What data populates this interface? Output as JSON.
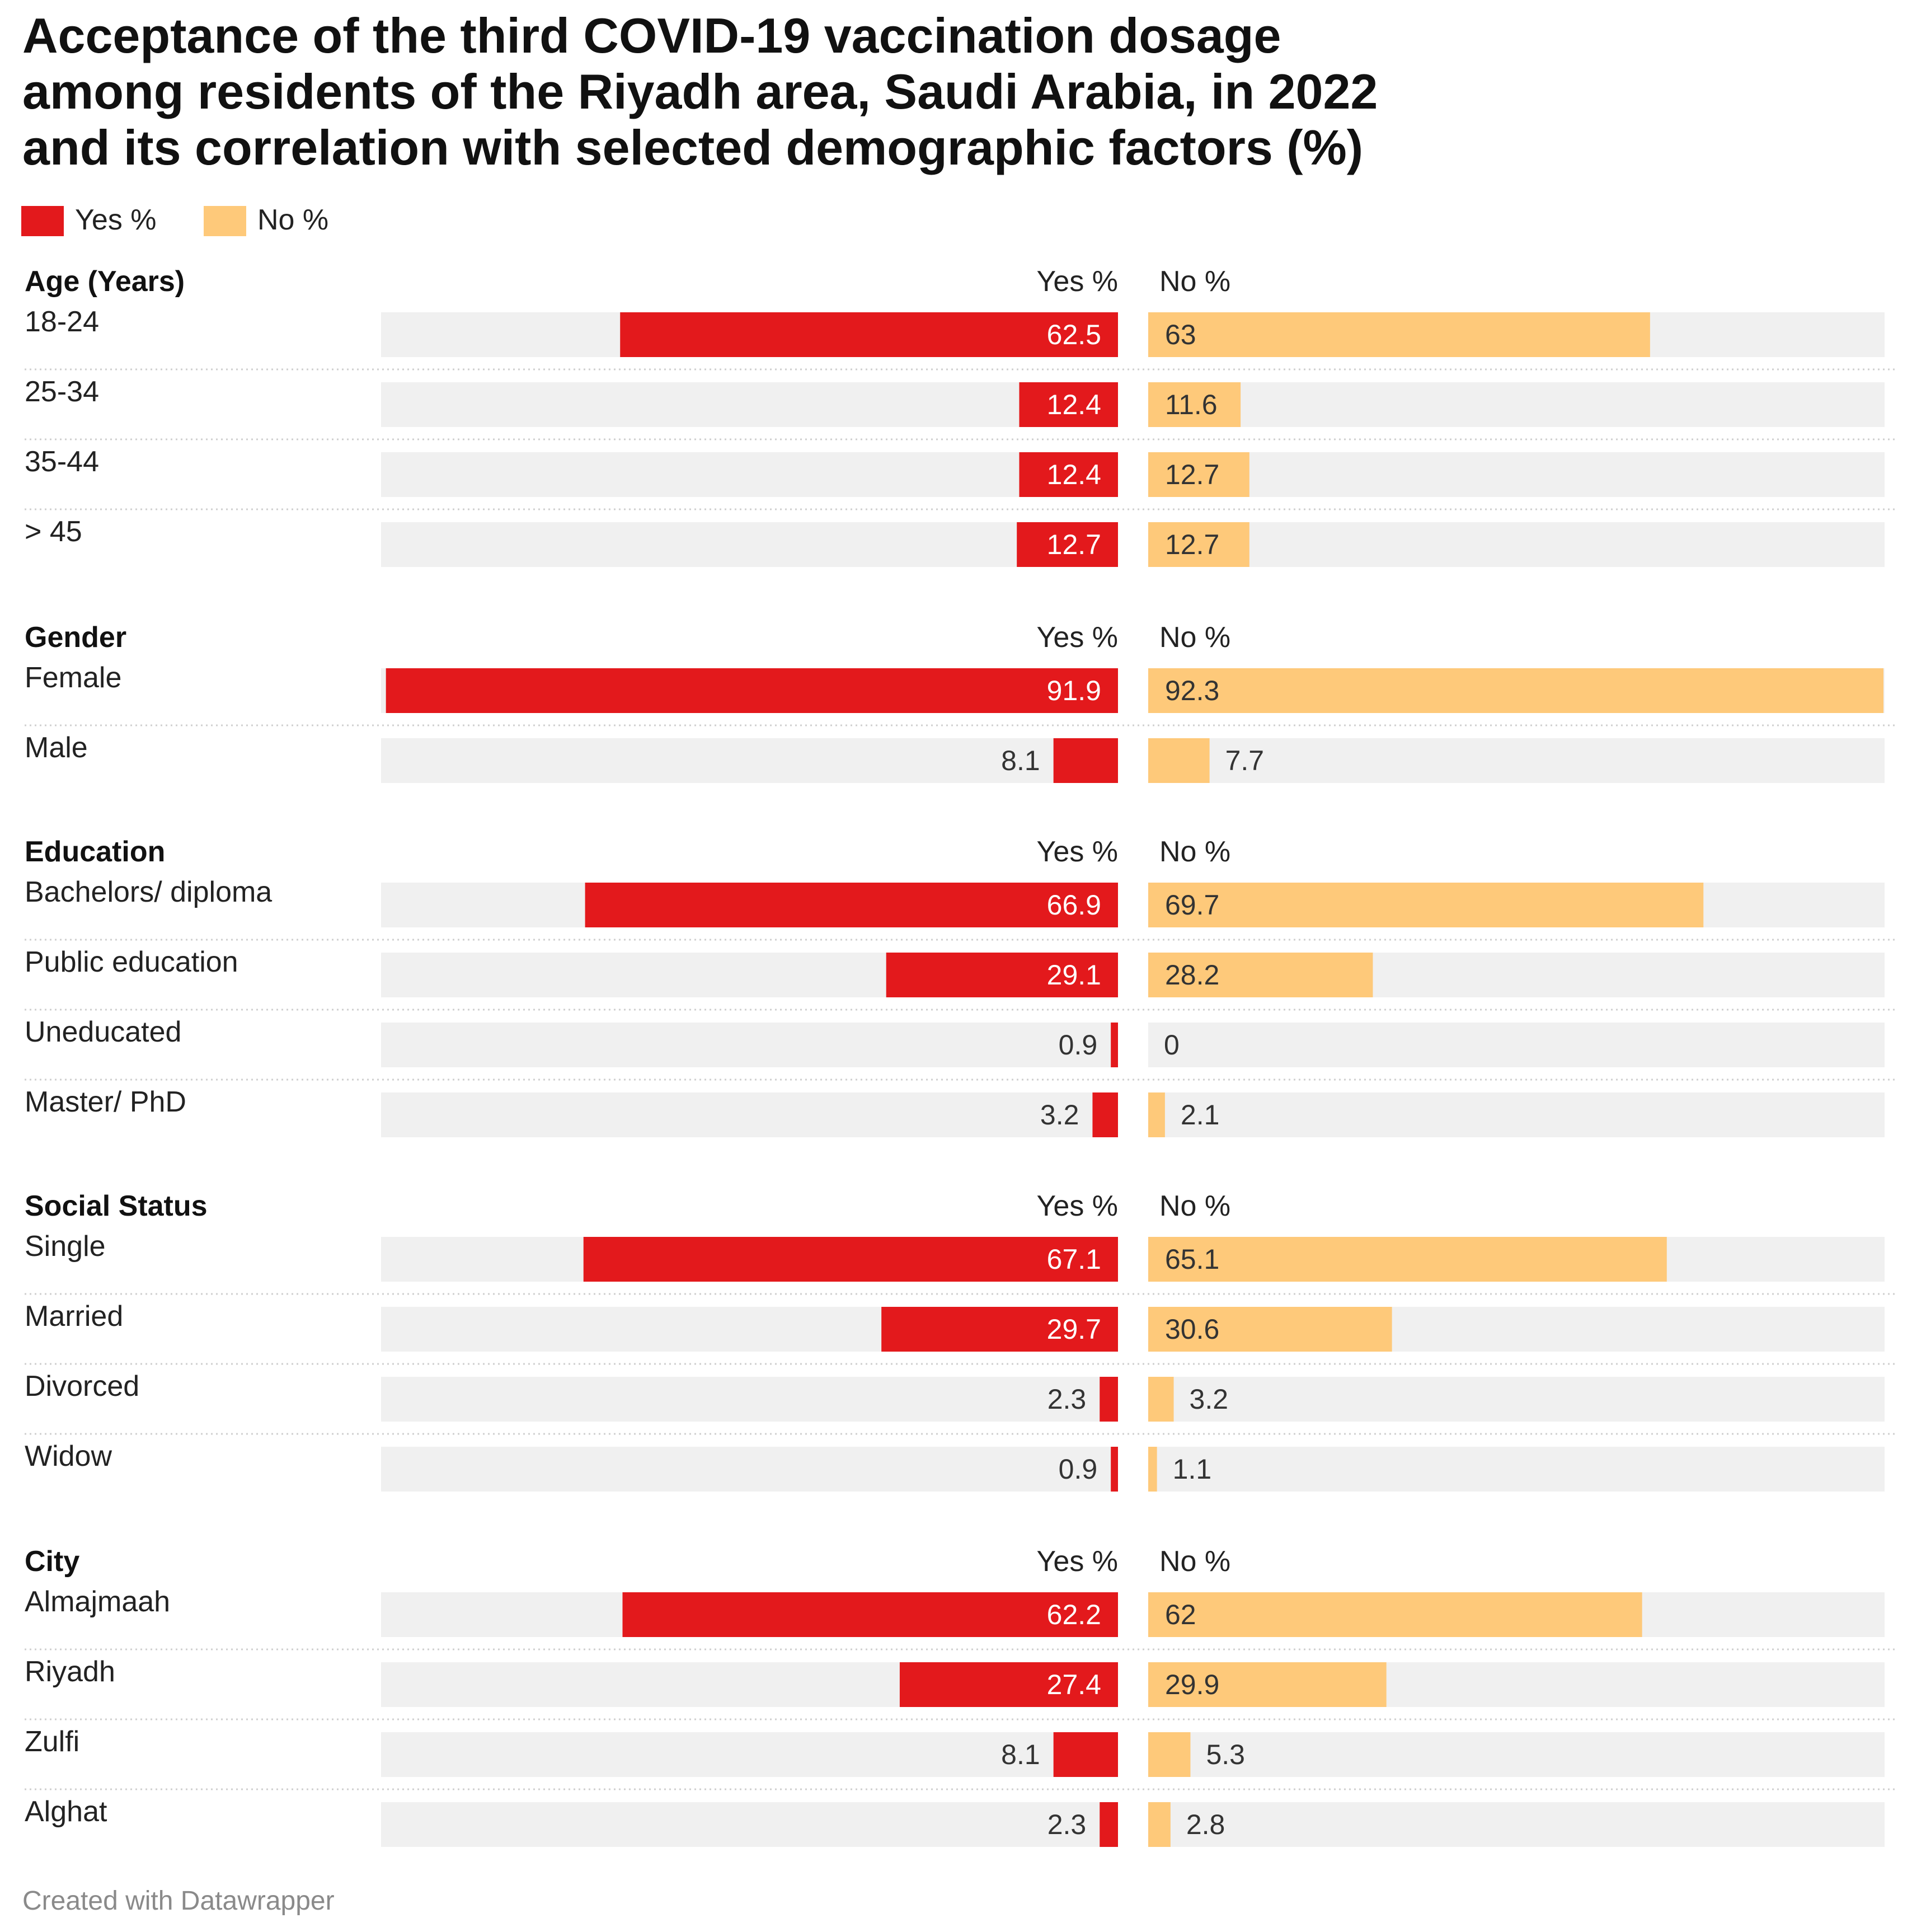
{
  "title_lines": [
    "Acceptance of the third COVID-19 vaccination dosage",
    "among residents of the Riyadh area, Saudi Arabia, in 2022",
    "and its correlation with selected demographic factors (%)"
  ],
  "legend": [
    {
      "label": "Yes %",
      "color": "#e3191c"
    },
    {
      "label": "No %",
      "color": "#fec97a"
    }
  ],
  "footer": "Created with Datawrapper",
  "chart_data": {
    "type": "bar",
    "orientation": "horizontal-split",
    "title": "Acceptance of the third COVID-19 vaccination dosage among residents of the Riyadh area, Saudi Arabia, in 2022 and its correlation with selected demographic factors (%)",
    "series": [
      {
        "name": "Yes %",
        "color": "#e3191c"
      },
      {
        "name": "No %",
        "color": "#fec97a"
      }
    ],
    "xlim": [
      0,
      92.3
    ],
    "groups": [
      {
        "name": "Age (Years)",
        "yes_header": "Yes %",
        "no_header": "No %",
        "rows": [
          {
            "label": "18-24",
            "yes": 62.5,
            "no": 63,
            "yes_text": "62.5",
            "no_text": "63"
          },
          {
            "label": "25-34",
            "yes": 12.4,
            "no": 11.6,
            "yes_text": "12.4",
            "no_text": "11.6"
          },
          {
            "label": "35-44",
            "yes": 12.4,
            "no": 12.7,
            "yes_text": "12.4",
            "no_text": "12.7"
          },
          {
            "label": "> 45",
            "yes": 12.7,
            "no": 12.7,
            "yes_text": "12.7",
            "no_text": "12.7"
          }
        ]
      },
      {
        "name": "Gender",
        "yes_header": "Yes %",
        "no_header": "No %",
        "rows": [
          {
            "label": "Female",
            "yes": 91.9,
            "no": 92.3,
            "yes_text": "91.9",
            "no_text": "92.3"
          },
          {
            "label": "Male",
            "yes": 8.1,
            "no": 7.7,
            "yes_text": "8.1",
            "no_text": "7.7"
          }
        ]
      },
      {
        "name": "Education",
        "yes_header": "Yes %",
        "no_header": "No %",
        "rows": [
          {
            "label": "Bachelors/ diploma",
            "yes": 66.9,
            "no": 69.7,
            "yes_text": "66.9",
            "no_text": "69.7"
          },
          {
            "label": "Public education",
            "yes": 29.1,
            "no": 28.2,
            "yes_text": "29.1",
            "no_text": "28.2"
          },
          {
            "label": "Uneducated",
            "yes": 0.9,
            "no": 0,
            "yes_text": "0.9",
            "no_text": "0"
          },
          {
            "label": "Master/ PhD",
            "yes": 3.2,
            "no": 2.1,
            "yes_text": "3.2",
            "no_text": "2.1"
          }
        ]
      },
      {
        "name": "Social Status",
        "yes_header": "Yes %",
        "no_header": "No %",
        "rows": [
          {
            "label": "Single",
            "yes": 67.1,
            "no": 65.1,
            "yes_text": "67.1",
            "no_text": "65.1"
          },
          {
            "label": "Married",
            "yes": 29.7,
            "no": 30.6,
            "yes_text": "29.7",
            "no_text": "30.6"
          },
          {
            "label": "Divorced",
            "yes": 2.3,
            "no": 3.2,
            "yes_text": "2.3",
            "no_text": "3.2"
          },
          {
            "label": "Widow",
            "yes": 0.9,
            "no": 1.1,
            "yes_text": "0.9",
            "no_text": "1.1"
          }
        ]
      },
      {
        "name": "City",
        "yes_header": "Yes %",
        "no_header": "No %",
        "rows": [
          {
            "label": "Almajmaah",
            "yes": 62.2,
            "no": 62,
            "yes_text": "62.2",
            "no_text": "62"
          },
          {
            "label": "Riyadh",
            "yes": 27.4,
            "no": 29.9,
            "yes_text": "27.4",
            "no_text": "29.9"
          },
          {
            "label": "Zulfi",
            "yes": 8.1,
            "no": 5.3,
            "yes_text": "8.1",
            "no_text": "5.3"
          },
          {
            "label": "Alghat",
            "yes": 2.3,
            "no": 2.8,
            "yes_text": "2.3",
            "no_text": "2.8"
          }
        ]
      }
    ]
  }
}
